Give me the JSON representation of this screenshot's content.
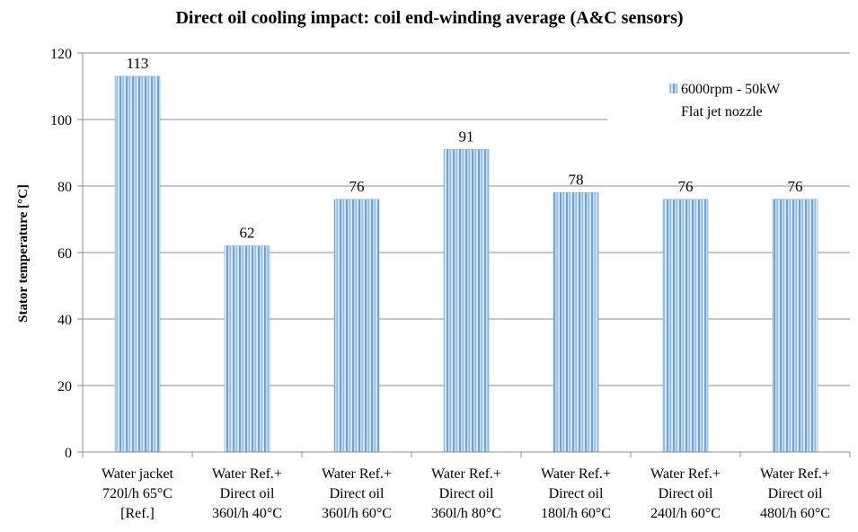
{
  "chart_data": {
    "type": "bar",
    "title": "Direct oil cooling impact: coil end-winding average (A&C sensors)",
    "xlabel": "",
    "ylabel": "Stator temperature [°C]",
    "ylim": [
      0,
      120
    ],
    "yticks": [
      0,
      20,
      40,
      60,
      80,
      100,
      120
    ],
    "grid": true,
    "legend_position": "top-right",
    "categories": [
      [
        "Water jacket",
        "720l/h 65°C",
        "[Ref.]"
      ],
      [
        "Water Ref.+",
        "Direct oil",
        "360l/h 40°C"
      ],
      [
        "Water Ref.+",
        "Direct oil",
        "360l/h 60°C"
      ],
      [
        "Water Ref.+",
        "Direct oil",
        "360l/h 80°C"
      ],
      [
        "Water Ref.+",
        "Direct oil",
        "180l/h 60°C"
      ],
      [
        "Water Ref.+",
        "Direct oil",
        "240l/h 60°C"
      ],
      [
        "Water Ref.+",
        "Direct oil",
        "480l/h 60°C"
      ]
    ],
    "series": [
      {
        "name": "6000rpm - 50kW",
        "subtitle": "Flat jet nozzle",
        "color": "#9dc3e6",
        "values": [
          113,
          62,
          76,
          91,
          78,
          76,
          76
        ],
        "labels": [
          "113",
          "62",
          "76",
          "91",
          "78",
          "76",
          "76"
        ]
      }
    ]
  }
}
